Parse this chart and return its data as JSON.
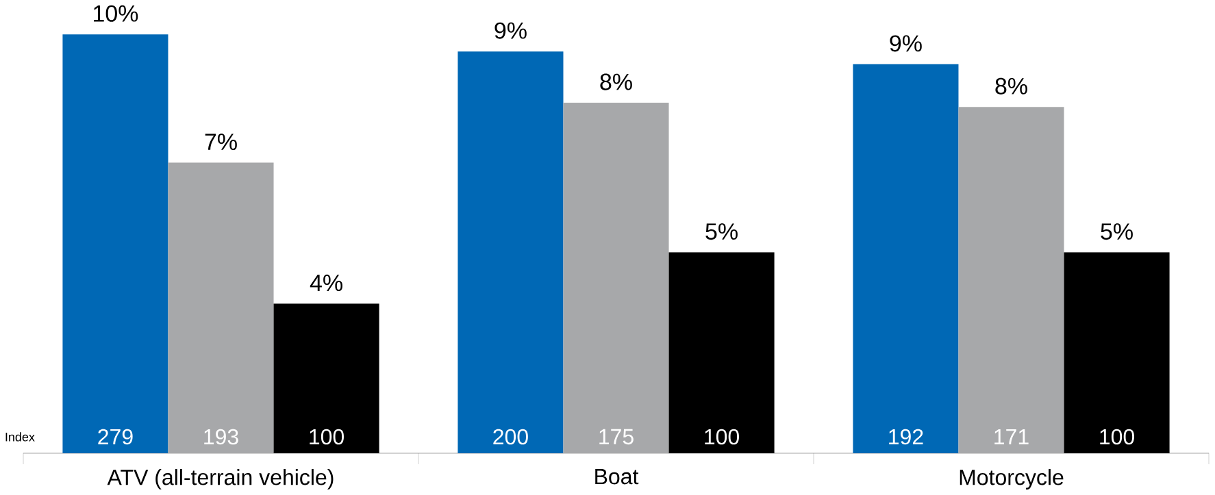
{
  "chart_data": {
    "type": "bar",
    "categories": [
      "ATV (all-terrain vehicle)",
      "Boat",
      "Motorcycle"
    ],
    "series": [
      {
        "color": "#0068b5",
        "values": [
          9.8,
          9.4,
          9.1
        ],
        "value_labels": [
          "10%",
          "9%",
          "9%"
        ]
      },
      {
        "color": "#a7a8aa",
        "values": [
          6.8,
          8.2,
          8.1
        ],
        "value_labels": [
          "7%",
          "8%",
          "8%"
        ]
      },
      {
        "color": "#000000",
        "values": [
          3.5,
          4.7,
          4.7
        ],
        "value_labels": [
          "4%",
          "5%",
          "5%"
        ]
      }
    ],
    "annotations": [
      "Index",
      "279",
      "193",
      "100",
      "200",
      "175",
      "100",
      "192",
      "171",
      "100"
    ]
  }
}
